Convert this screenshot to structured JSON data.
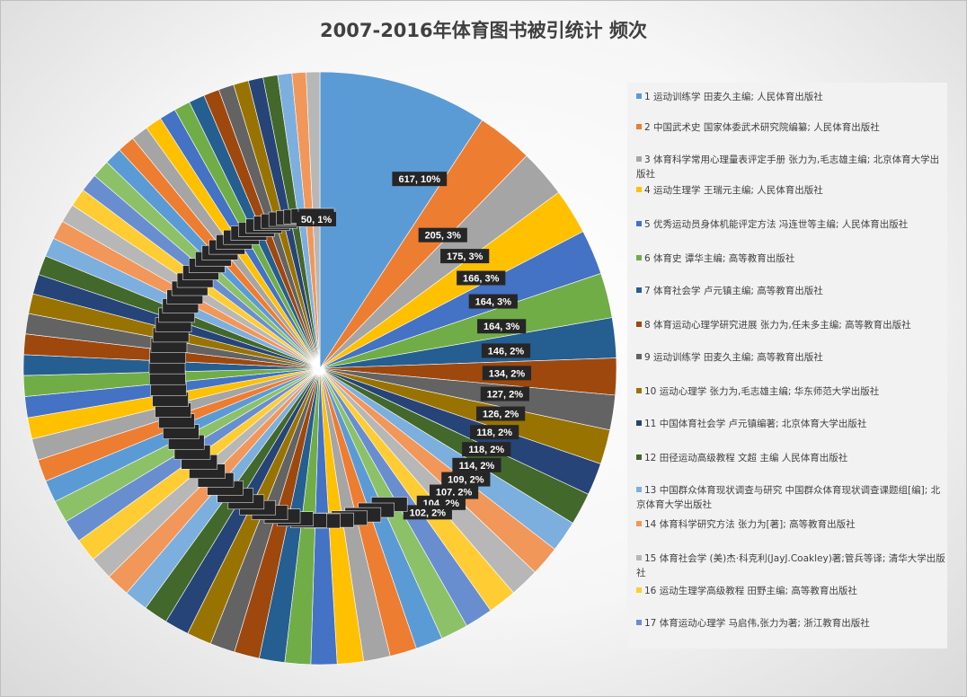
{
  "chart_data": {
    "type": "pie",
    "title": "2007-2016年体育图书被引统计 频次",
    "values": [
      617,
      205,
      175,
      166,
      164,
      164,
      146,
      134,
      127,
      126,
      118,
      118,
      114,
      109,
      107,
      104,
      102
    ],
    "percent_labels": [
      "617, 10%",
      "205, 3%",
      "175, 3%",
      "166, 3%",
      "164, 3%",
      "164, 3%",
      "146, 2%",
      "134, 2%",
      "127, 2%",
      "126, 2%",
      "118, 2%",
      "118, 2%",
      "114, 2%",
      "109, 2%",
      "107, 2%",
      "104, 2%",
      "102, 2%"
    ],
    "last_visible_label": "50, 1%",
    "legend_position": "right",
    "legend": [
      {
        "index": "1",
        "text": "运动训练学 田麦久主编; 人民体育出版社"
      },
      {
        "index": "2",
        "text": "中国武术史 国家体委武术研究院编纂; 人民体育出版社"
      },
      {
        "index": "3",
        "text": "体育科学常用心理量表评定手册 张力为,毛志雄主编; 北京体育大学出版社"
      },
      {
        "index": "4",
        "text": "运动生理学 王瑞元主编; 人民体育出版社"
      },
      {
        "index": "5",
        "text": "优秀运动员身体机能评定方法 冯连世等主编; 人民体育出版社"
      },
      {
        "index": "6",
        "text": "体育史 谭华主编; 高等教育出版社"
      },
      {
        "index": "7",
        "text": "体育社会学 卢元镇主编; 高等教育出版社"
      },
      {
        "index": "8",
        "text": "体育运动心理学研究进展 张力为,任未多主编; 高等教育出版社"
      },
      {
        "index": "9",
        "text": "运动训练学 田麦久主编; 高等教育出版社"
      },
      {
        "index": "10",
        "text": "运动心理学 张力为,毛志雄主编; 华东师范大学出版社"
      },
      {
        "index": "11",
        "text": "中国体育社会学 卢元镇编著; 北京体育大学出版社"
      },
      {
        "index": "12",
        "text": "田径运动高级教程 文超 主编 人民体育出版社"
      },
      {
        "index": "13",
        "text": "中国群众体育现状调查与研究 中国群众体育现状调查课题组[编]; 北京体育大学出版社"
      },
      {
        "index": "14",
        "text": "体育科学研究方法 张力为[著]; 高等教育出版社"
      },
      {
        "index": "15",
        "text": "体育社会学 (美)杰·科克利(JayJ.Coakley)著;管兵等译; 清华大学出版社"
      },
      {
        "index": "16",
        "text": "运动生理学高级教程 田野主编; 高等教育出版社"
      },
      {
        "index": "17",
        "text": "体育运动心理学 马启伟,张力为著; 浙江教育出版社"
      }
    ],
    "colors": [
      "#5B9BD5",
      "#ED7D31",
      "#A5A5A5",
      "#FFC000",
      "#4472C4",
      "#70AD47",
      "#255E91",
      "#9E480E",
      "#636363",
      "#997300",
      "#264478",
      "#43682B",
      "#7CAFDD",
      "#F1975A",
      "#B7B7B7",
      "#FFCD33",
      "#698ED0",
      "#8CC168"
    ]
  }
}
